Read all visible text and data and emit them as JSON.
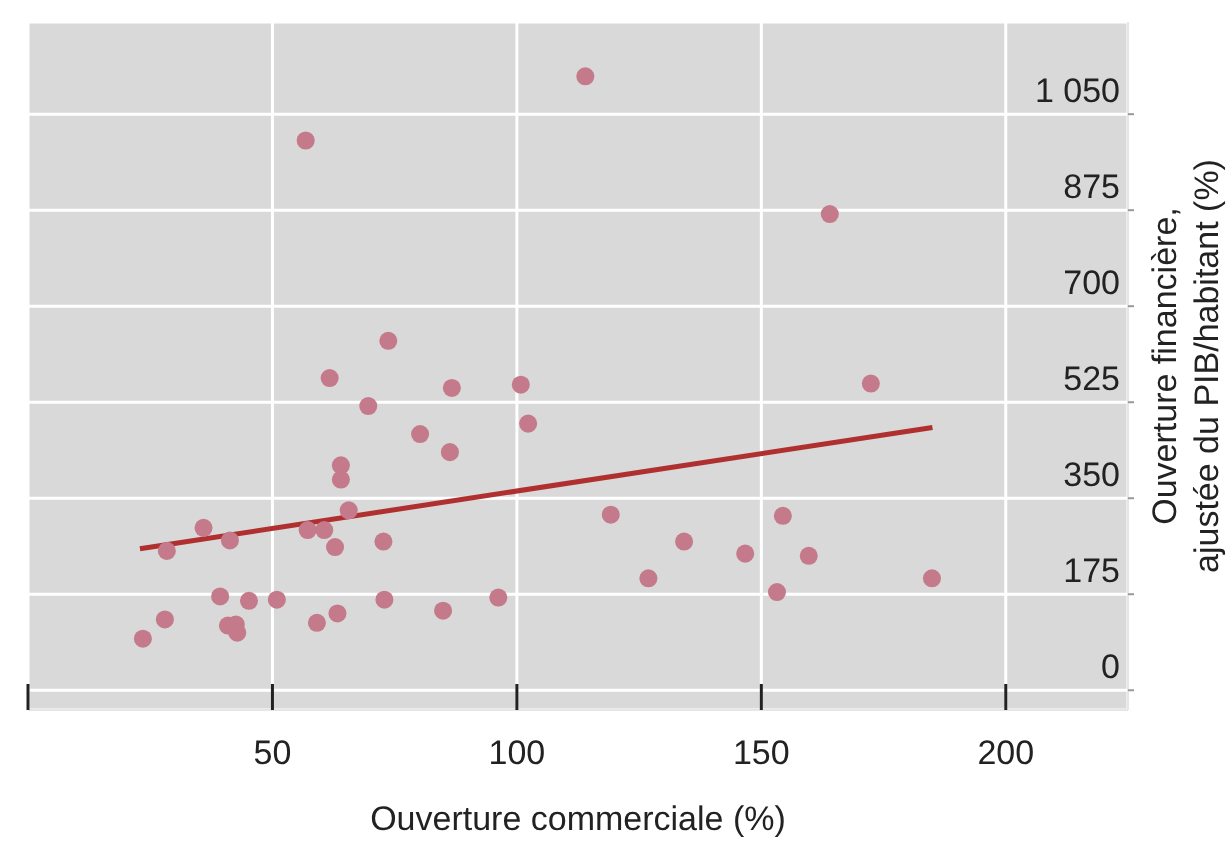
{
  "chart_data": {
    "type": "scatter",
    "xlabel": "Ouverture commerciale (%)",
    "ylabel": "Ouverture financière, ajustée du PIB/habitant (%)",
    "xlim": [
      0,
      225
    ],
    "xticks": [
      {
        "value": 0,
        "label": null
      },
      50,
      100,
      150,
      200
    ],
    "ylim": [
      -36,
      1218
    ],
    "yticks": [
      0,
      175,
      350,
      525,
      700,
      875,
      {
        "value": 1050,
        "label": "1 050"
      }
    ],
    "grid": true,
    "series": [
      {
        "color": "#c47a8a",
        "marker": "circle",
        "x": [
          114,
          56.8,
          164,
          172.4,
          73.7,
          61.7,
          86.7,
          100.8,
          69.6,
          102.3,
          80.2,
          86.3,
          64.0,
          64.0,
          65.6,
          35.9,
          57.2,
          60.6,
          41.3,
          72.7,
          28.4,
          62.8,
          119.2,
          39.3,
          45.2,
          50.9,
          72.9,
          96.2,
          28.0,
          23.5,
          40.9,
          42.5,
          42.8,
          59.1,
          63.3,
          84.9,
          154.4,
          134.2,
          146.7,
          159.7,
          126.9,
          153.2,
          184.9
        ],
        "values": [
          1119,
          1002,
          868,
          559,
          637,
          569,
          551,
          557,
          518,
          486,
          467,
          434,
          410,
          384,
          328,
          296,
          292,
          292,
          273,
          271,
          254,
          261,
          320,
          171,
          163,
          165,
          165,
          169,
          129,
          94,
          118,
          120,
          105,
          123,
          140,
          145,
          318,
          271,
          249,
          245,
          204,
          179,
          204
        ]
      },
      {
        "type": "line",
        "color": "#b03030",
        "x": [
          22.9,
          185
        ],
        "values": [
          258,
          479
        ]
      }
    ]
  }
}
